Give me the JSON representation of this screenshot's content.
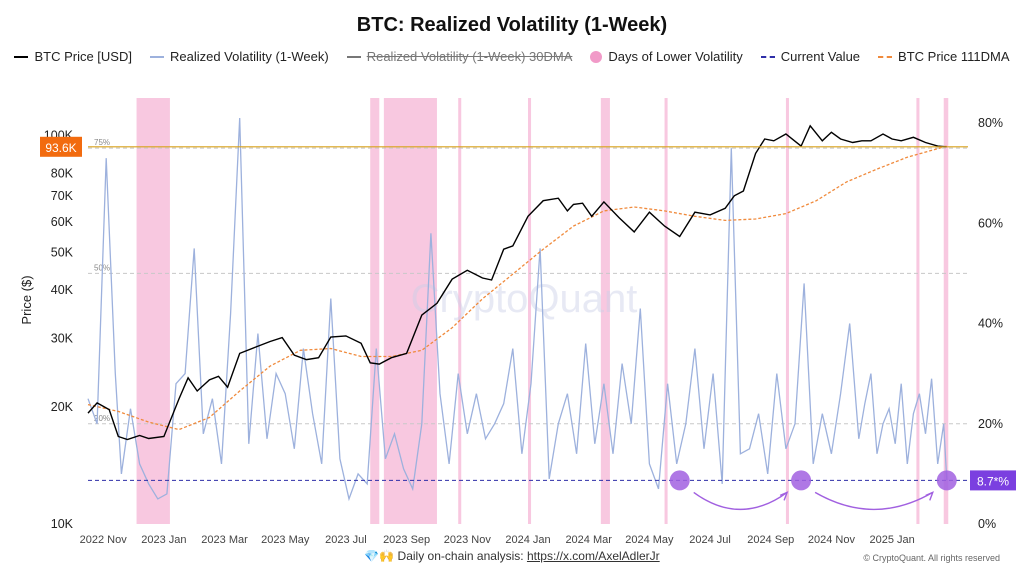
{
  "chart_data": {
    "type": "line",
    "title": "BTC: Realized Volatility (1-Week)",
    "ylabel_left": "Price ($)",
    "y_left_scale": "log",
    "y_left_range": [
      10000,
      125000
    ],
    "y_left_ticks": [
      10000,
      20000,
      30000,
      40000,
      50000,
      60000,
      70000,
      80000,
      100000
    ],
    "y_left_tick_labels": [
      "10K",
      "20K",
      "30K",
      "40K",
      "50K",
      "60K",
      "70K",
      "80K",
      "100K"
    ],
    "y_right_range": [
      0,
      0.85
    ],
    "y_right_ticks": [
      0,
      0.2,
      0.4,
      0.6,
      0.8
    ],
    "y_right_tick_labels": [
      "0%",
      "20%",
      "40%",
      "60%",
      "80%"
    ],
    "x_range": [
      0,
      29
    ],
    "x_ticks": [
      0.5,
      2.5,
      4.5,
      6.5,
      8.5,
      10.5,
      12.5,
      14.5,
      16.5,
      18.5,
      20.5,
      22.5,
      24.5,
      26.5
    ],
    "x_tick_labels": [
      "2022 Nov",
      "2023 Jan",
      "2023 Mar",
      "2023 May",
      "2023 Jul",
      "2023 Sep",
      "2023 Nov",
      "2024 Jan",
      "2024 Mar",
      "2024 May",
      "2024 Jul",
      "2024 Sep",
      "2024 Nov",
      "2025 Jan"
    ],
    "guide_levels": [
      {
        "label": "75%",
        "value": 0.75
      },
      {
        "label": "50%",
        "value": 0.5
      },
      {
        "label": "20%",
        "value": 0.2
      }
    ],
    "current_price_label": "93.6K",
    "current_price_value": 93600,
    "current_vol_label": "8.7*%",
    "current_vol_value": 0.087,
    "legend": [
      {
        "label": "BTC Price [USD]",
        "color": "#000000",
        "style": "line",
        "struck": false
      },
      {
        "label": "Realized Volatility (1-Week)",
        "color": "#9db1dd",
        "style": "line",
        "struck": false
      },
      {
        "label": "Realized Volatility (1-Week) 30DMA",
        "color": "#555555",
        "style": "line",
        "struck": true
      },
      {
        "label": "Days of Lower Volatility",
        "color": "#f19ac8",
        "style": "dot",
        "struck": false
      },
      {
        "label": "Current Value",
        "color": "#2e2ea8",
        "style": "dashed",
        "struck": false
      },
      {
        "label": "BTC Price 111DMA",
        "color": "#f08a3c",
        "style": "dashed",
        "struck": false
      }
    ],
    "colors": {
      "price": "#000000",
      "volatility": "#9db1dd",
      "dma": "#f08a3c",
      "low_vol": "#f5b6d6",
      "current": "#2e2ea8",
      "current_price_badge": "#f26b0f",
      "current_vol_badge": "#7b3fe0",
      "gold_line": "#d9a21b",
      "markers": "#a160e0"
    },
    "series": [
      {
        "name": "BTC Price [USD]",
        "x": [
          0,
          0.3,
          0.7,
          1,
          1.3,
          1.7,
          2,
          2.5,
          3,
          3.3,
          3.6,
          4,
          4.3,
          4.6,
          5,
          5.5,
          6,
          6.4,
          6.8,
          7.2,
          7.6,
          8,
          8.5,
          9,
          9.3,
          9.6,
          10,
          10.5,
          11,
          11.5,
          12,
          12.5,
          13,
          13.3,
          13.7,
          14,
          14.5,
          15,
          15.5,
          15.8,
          16,
          16.3,
          16.6,
          17,
          17.5,
          18,
          18.5,
          19,
          19.5,
          20,
          20.5,
          21,
          21.3,
          21.6,
          22,
          22.3,
          22.6,
          23,
          23.5,
          23.8,
          24.2,
          24.5,
          24.8,
          25.2,
          25.5,
          25.8,
          26.2,
          26.5,
          26.8,
          27.2,
          27.6,
          28,
          28.3
        ],
        "values": [
          19300,
          20500,
          19700,
          16800,
          16500,
          16900,
          16600,
          16800,
          21000,
          23800,
          22000,
          23500,
          24000,
          22500,
          27500,
          28500,
          29500,
          30200,
          27200,
          26500,
          26800,
          30300,
          30500,
          29200,
          26000,
          25800,
          26800,
          27500,
          34500,
          37000,
          42700,
          45000,
          43000,
          42500,
          51000,
          52000,
          62000,
          68000,
          69000,
          64000,
          66500,
          67000,
          62000,
          67500,
          61500,
          56500,
          63500,
          58500,
          55000,
          63500,
          62500,
          65000,
          70000,
          72000,
          90000,
          98000,
          97000,
          101000,
          94000,
          106000,
          97000,
          102000,
          98000,
          96000,
          97000,
          97000,
          101000,
          98000,
          97000,
          99000,
          96000,
          94000,
          93600
        ]
      },
      {
        "name": "BTC Price 111DMA",
        "x": [
          0,
          1,
          2,
          3,
          4,
          5,
          6,
          7,
          8,
          9,
          10,
          11,
          12,
          13,
          14,
          15,
          16,
          17,
          18,
          19,
          20,
          21,
          22,
          23,
          24,
          25,
          26,
          27,
          28.3
        ],
        "values": [
          20300,
          19500,
          18300,
          17500,
          18800,
          22000,
          25500,
          28000,
          28300,
          27000,
          27000,
          28000,
          32000,
          38000,
          44000,
          51000,
          58500,
          64000,
          65500,
          64000,
          62000,
          60500,
          61000,
          63000,
          68000,
          76000,
          82000,
          88000,
          94000
        ]
      },
      {
        "name": "Realized Volatility (1-Week)",
        "x": [
          0,
          0.3,
          0.6,
          0.9,
          1.1,
          1.4,
          1.7,
          2,
          2.3,
          2.6,
          2.9,
          3.2,
          3.5,
          3.8,
          4.1,
          4.4,
          4.7,
          5,
          5.3,
          5.6,
          5.9,
          6.2,
          6.5,
          6.8,
          7.1,
          7.4,
          7.7,
          8,
          8.3,
          8.6,
          8.9,
          9.2,
          9.5,
          9.8,
          10.1,
          10.4,
          10.7,
          11,
          11.3,
          11.6,
          11.9,
          12.2,
          12.5,
          12.8,
          13.1,
          13.4,
          13.7,
          14,
          14.3,
          14.6,
          14.9,
          15.2,
          15.5,
          15.8,
          16.1,
          16.4,
          16.7,
          17,
          17.3,
          17.6,
          17.9,
          18.2,
          18.5,
          18.8,
          19.1,
          19.4,
          19.7,
          20,
          20.3,
          20.6,
          20.9,
          21.2,
          21.5,
          21.8,
          22.1,
          22.4,
          22.7,
          23,
          23.3,
          23.6,
          23.9,
          24.2,
          24.5,
          24.8,
          25.1,
          25.4,
          25.6,
          25.8,
          26,
          26.2,
          26.4,
          26.6,
          26.8,
          27,
          27.2,
          27.4,
          27.6,
          27.8,
          28,
          28.2,
          28.3
        ],
        "values": [
          0.25,
          0.2,
          0.73,
          0.3,
          0.1,
          0.23,
          0.12,
          0.08,
          0.05,
          0.06,
          0.28,
          0.3,
          0.55,
          0.18,
          0.25,
          0.12,
          0.42,
          0.81,
          0.16,
          0.38,
          0.17,
          0.3,
          0.26,
          0.15,
          0.35,
          0.22,
          0.12,
          0.45,
          0.13,
          0.05,
          0.1,
          0.08,
          0.35,
          0.13,
          0.18,
          0.11,
          0.07,
          0.2,
          0.58,
          0.26,
          0.12,
          0.3,
          0.18,
          0.26,
          0.17,
          0.2,
          0.24,
          0.35,
          0.14,
          0.28,
          0.55,
          0.09,
          0.2,
          0.26,
          0.14,
          0.36,
          0.16,
          0.28,
          0.14,
          0.32,
          0.2,
          0.43,
          0.12,
          0.07,
          0.28,
          0.12,
          0.2,
          0.35,
          0.15,
          0.3,
          0.08,
          0.75,
          0.14,
          0.15,
          0.22,
          0.1,
          0.3,
          0.15,
          0.2,
          0.48,
          0.12,
          0.22,
          0.14,
          0.26,
          0.4,
          0.17,
          0.24,
          0.3,
          0.14,
          0.2,
          0.23,
          0.16,
          0.28,
          0.12,
          0.22,
          0.26,
          0.18,
          0.29,
          0.12,
          0.2,
          0.087
        ]
      }
    ],
    "low_volatility_periods": [
      {
        "start": 1.6,
        "end": 2.7
      },
      {
        "start": 9.3,
        "end": 9.6
      },
      {
        "start": 9.75,
        "end": 11.5
      },
      {
        "start": 12.2,
        "end": 12.3
      },
      {
        "start": 14.5,
        "end": 14.6
      },
      {
        "start": 16.9,
        "end": 17.2
      },
      {
        "start": 19.0,
        "end": 19.1
      },
      {
        "start": 23.0,
        "end": 23.1
      },
      {
        "start": 27.3,
        "end": 27.4
      },
      {
        "start": 28.2,
        "end": 28.35
      }
    ],
    "low_vol_markers": [
      19.5,
      23.5,
      28.3
    ]
  },
  "watermark": "CryptoQuant",
  "footer": {
    "icons": "💎🙌",
    "text": "Daily on-chain analysis:",
    "link": "https://x.com/AxelAdlerJr",
    "copyright": "© CryptoQuant. All rights reserved"
  }
}
